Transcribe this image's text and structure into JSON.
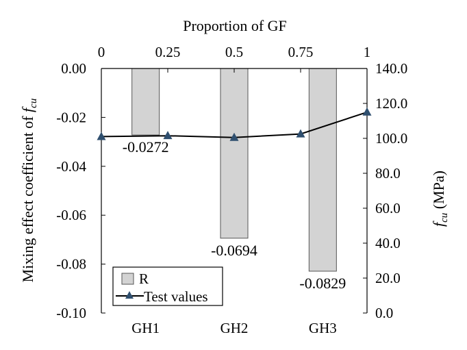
{
  "chart_data": {
    "type": "bar+line",
    "categories": [
      "GH1",
      "GH2",
      "GH3"
    ],
    "bars": {
      "name": "R",
      "values": [
        -0.0272,
        -0.0694,
        -0.0829
      ],
      "labels": [
        "-0.0272",
        "-0.0694",
        "-0.0829"
      ],
      "color": "#d3d3d3",
      "edge_color": "#555555"
    },
    "line": {
      "name": "Test values",
      "x": [
        0,
        0.25,
        0.5,
        0.75,
        1
      ],
      "y": [
        101,
        101.5,
        100.5,
        102.5,
        115
      ],
      "color": "#000000",
      "marker_color": "#2f4f6f",
      "marker": "triangle"
    },
    "y_left": {
      "label_prefix": "Mixing effect coefficient of ",
      "label_var": "f",
      "label_sub": "cu",
      "lim": [
        -0.1,
        0.0
      ],
      "ticks": [
        0.0,
        -0.02,
        -0.04,
        -0.06,
        -0.08,
        -0.1
      ],
      "tick_labels": [
        "0.00",
        "-0.02",
        "-0.04",
        "-0.06",
        "-0.08",
        "-0.10"
      ]
    },
    "y_right": {
      "label_var": "f",
      "label_sub": "cu",
      "label_suffix": " (MPa)",
      "lim": [
        0,
        140
      ],
      "ticks": [
        140,
        120,
        100,
        80,
        60,
        40,
        20,
        0
      ],
      "tick_labels": [
        "140.0",
        "120.0",
        "100.0",
        "80.0",
        "60.0",
        "40.0",
        "20.0",
        "0.0"
      ]
    },
    "x_top": {
      "label": "Proportion of GF",
      "lim": [
        0,
        1
      ],
      "ticks": [
        0,
        0.25,
        0.5,
        0.75,
        1
      ],
      "tick_labels": [
        "0",
        "0.25",
        "0.5",
        "0.75",
        "1"
      ]
    },
    "legend": {
      "position": "bottom-left",
      "entries": [
        "R",
        "Test values"
      ]
    },
    "grid": false
  }
}
